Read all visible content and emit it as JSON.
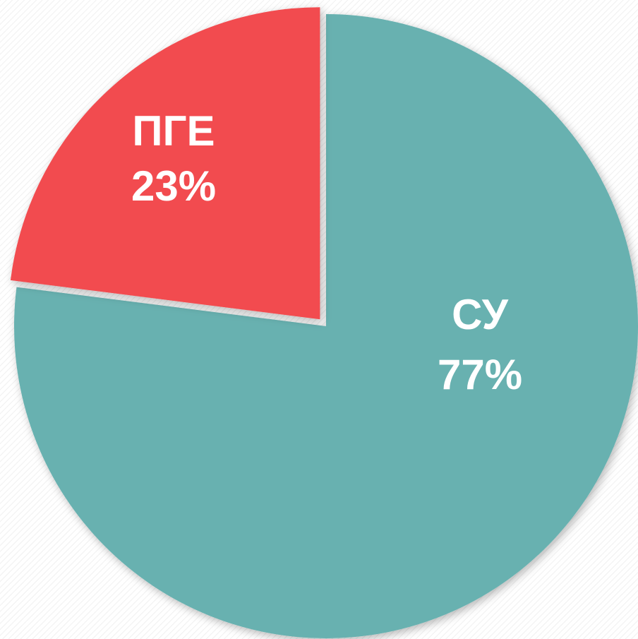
{
  "chart_data": {
    "type": "pie",
    "categories": [
      "СУ",
      "ПГЕ"
    ],
    "values": [
      77,
      23
    ],
    "value_labels": [
      "77%",
      "23%"
    ],
    "colors": [
      "#67b1b0",
      "#f24c4f"
    ]
  }
}
